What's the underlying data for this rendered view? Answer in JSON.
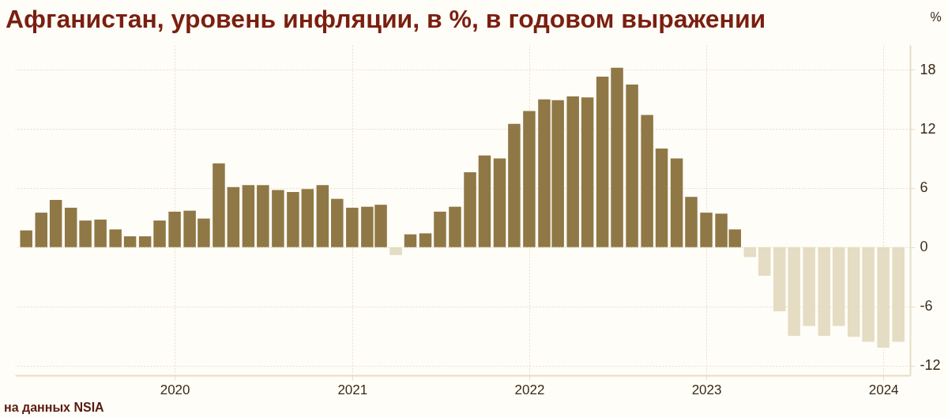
{
  "chart_data": {
    "type": "bar",
    "title": "Афганистан, уровень инфляции, в %, в годовом выражении",
    "ylabel": "%",
    "annotations": [
      "на данных NSIA"
    ],
    "x": [
      "2019-03",
      "2019-04",
      "2019-05",
      "2019-06",
      "2019-07",
      "2019-08",
      "2019-09",
      "2019-10",
      "2019-11",
      "2019-12",
      "2020-01",
      "2020-02",
      "2020-03",
      "2020-04",
      "2020-05",
      "2020-06",
      "2020-07",
      "2020-08",
      "2020-09",
      "2020-10",
      "2020-11",
      "2020-12",
      "2021-01",
      "2021-02",
      "2021-03",
      "2021-04",
      "2021-05",
      "2021-06",
      "2021-07",
      "2021-08",
      "2021-09",
      "2021-10",
      "2021-11",
      "2021-12",
      "2022-01",
      "2022-02",
      "2022-03",
      "2022-04",
      "2022-05",
      "2022-06",
      "2022-07",
      "2022-08",
      "2022-09",
      "2022-10",
      "2022-11",
      "2022-12",
      "2023-01",
      "2023-02",
      "2023-03",
      "2023-04",
      "2023-05",
      "2023-06",
      "2023-07",
      "2023-08",
      "2023-09",
      "2023-10",
      "2023-11",
      "2023-12",
      "2024-01",
      "2024-02"
    ],
    "values": [
      1.7,
      3.5,
      4.8,
      4.0,
      2.7,
      2.8,
      1.8,
      1.1,
      1.1,
      2.7,
      3.6,
      3.7,
      2.9,
      8.5,
      6.1,
      6.3,
      6.3,
      5.8,
      5.6,
      5.9,
      6.3,
      4.9,
      4.0,
      4.1,
      4.3,
      -0.8,
      1.3,
      1.4,
      3.6,
      4.1,
      7.6,
      9.3,
      9.0,
      12.5,
      13.8,
      15.0,
      14.9,
      15.3,
      15.2,
      17.3,
      18.2,
      16.5,
      13.4,
      10.0,
      9.0,
      5.1,
      3.5,
      3.4,
      1.8,
      -1.0,
      -2.9,
      -6.5,
      -9.0,
      -8.0,
      -9.0,
      -8.0,
      -9.1,
      -9.6,
      -10.2,
      -9.6
    ],
    "colors": [
      "#8f7846",
      "#8f7846",
      "#8f7846",
      "#8f7846",
      "#8f7846",
      "#8f7846",
      "#8f7846",
      "#8f7846",
      "#8f7846",
      "#8f7846",
      "#8f7846",
      "#8f7846",
      "#8f7846",
      "#8f7846",
      "#8f7846",
      "#8f7846",
      "#8f7846",
      "#8f7846",
      "#8f7846",
      "#8f7846",
      "#8f7846",
      "#8f7846",
      "#8f7846",
      "#8f7846",
      "#8f7846",
      "#e4dcc3",
      "#8f7846",
      "#8f7846",
      "#8f7846",
      "#8f7846",
      "#8f7846",
      "#8f7846",
      "#8f7846",
      "#8f7846",
      "#8f7846",
      "#8f7846",
      "#8f7846",
      "#8f7846",
      "#8f7846",
      "#8f7846",
      "#8f7846",
      "#8f7846",
      "#8f7846",
      "#8f7846",
      "#8f7846",
      "#8f7846",
      "#8f7846",
      "#8f7846",
      "#8f7846",
      "#e4dcc3",
      "#e4dcc3",
      "#e4dcc3",
      "#e4dcc3",
      "#e4dcc3",
      "#e4dcc3",
      "#e4dcc3",
      "#e4dcc3",
      "#e4dcc3",
      "#e4dcc3",
      "#e4dcc3"
    ],
    "xlim": [
      "2019-02-14",
      "2024-02-17"
    ],
    "xticks": [
      "2020",
      "2021",
      "2022",
      "2023",
      "2024"
    ],
    "ylim": [
      -13,
      20.5
    ],
    "yticks": [
      -12,
      -6,
      0,
      6,
      12,
      18
    ],
    "grid": true
  }
}
